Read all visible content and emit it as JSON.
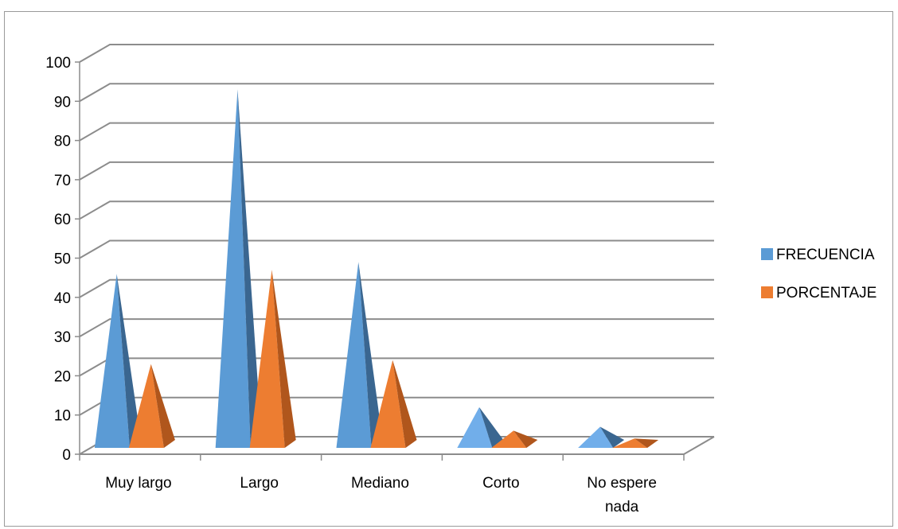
{
  "chart_data": {
    "type": "bar",
    "style": "3d-pyramid",
    "categories": [
      [
        "Muy largo"
      ],
      [
        "Largo"
      ],
      [
        "Mediano"
      ],
      [
        "Corto"
      ],
      [
        "No espere",
        "nada"
      ]
    ],
    "series": [
      {
        "name": "FRECUENCIA",
        "values": [
          46,
          93,
          49,
          12,
          7
        ],
        "colors": {
          "face": "#5b9bd5",
          "side": "#3a6690",
          "light_face": "#71aeea"
        }
      },
      {
        "name": "PORCENTAJE",
        "values": [
          23,
          47,
          24,
          6,
          4
        ],
        "colors": {
          "face": "#ed7d31",
          "side": "#b0561c"
        }
      }
    ],
    "ylim": [
      0,
      100
    ],
    "yticks": [
      "0",
      "10",
      "20",
      "30",
      "40",
      "50",
      "60",
      "70",
      "80",
      "90",
      "100"
    ],
    "grid": true,
    "legend": "right",
    "title": "",
    "xlabel": "",
    "ylabel": ""
  }
}
